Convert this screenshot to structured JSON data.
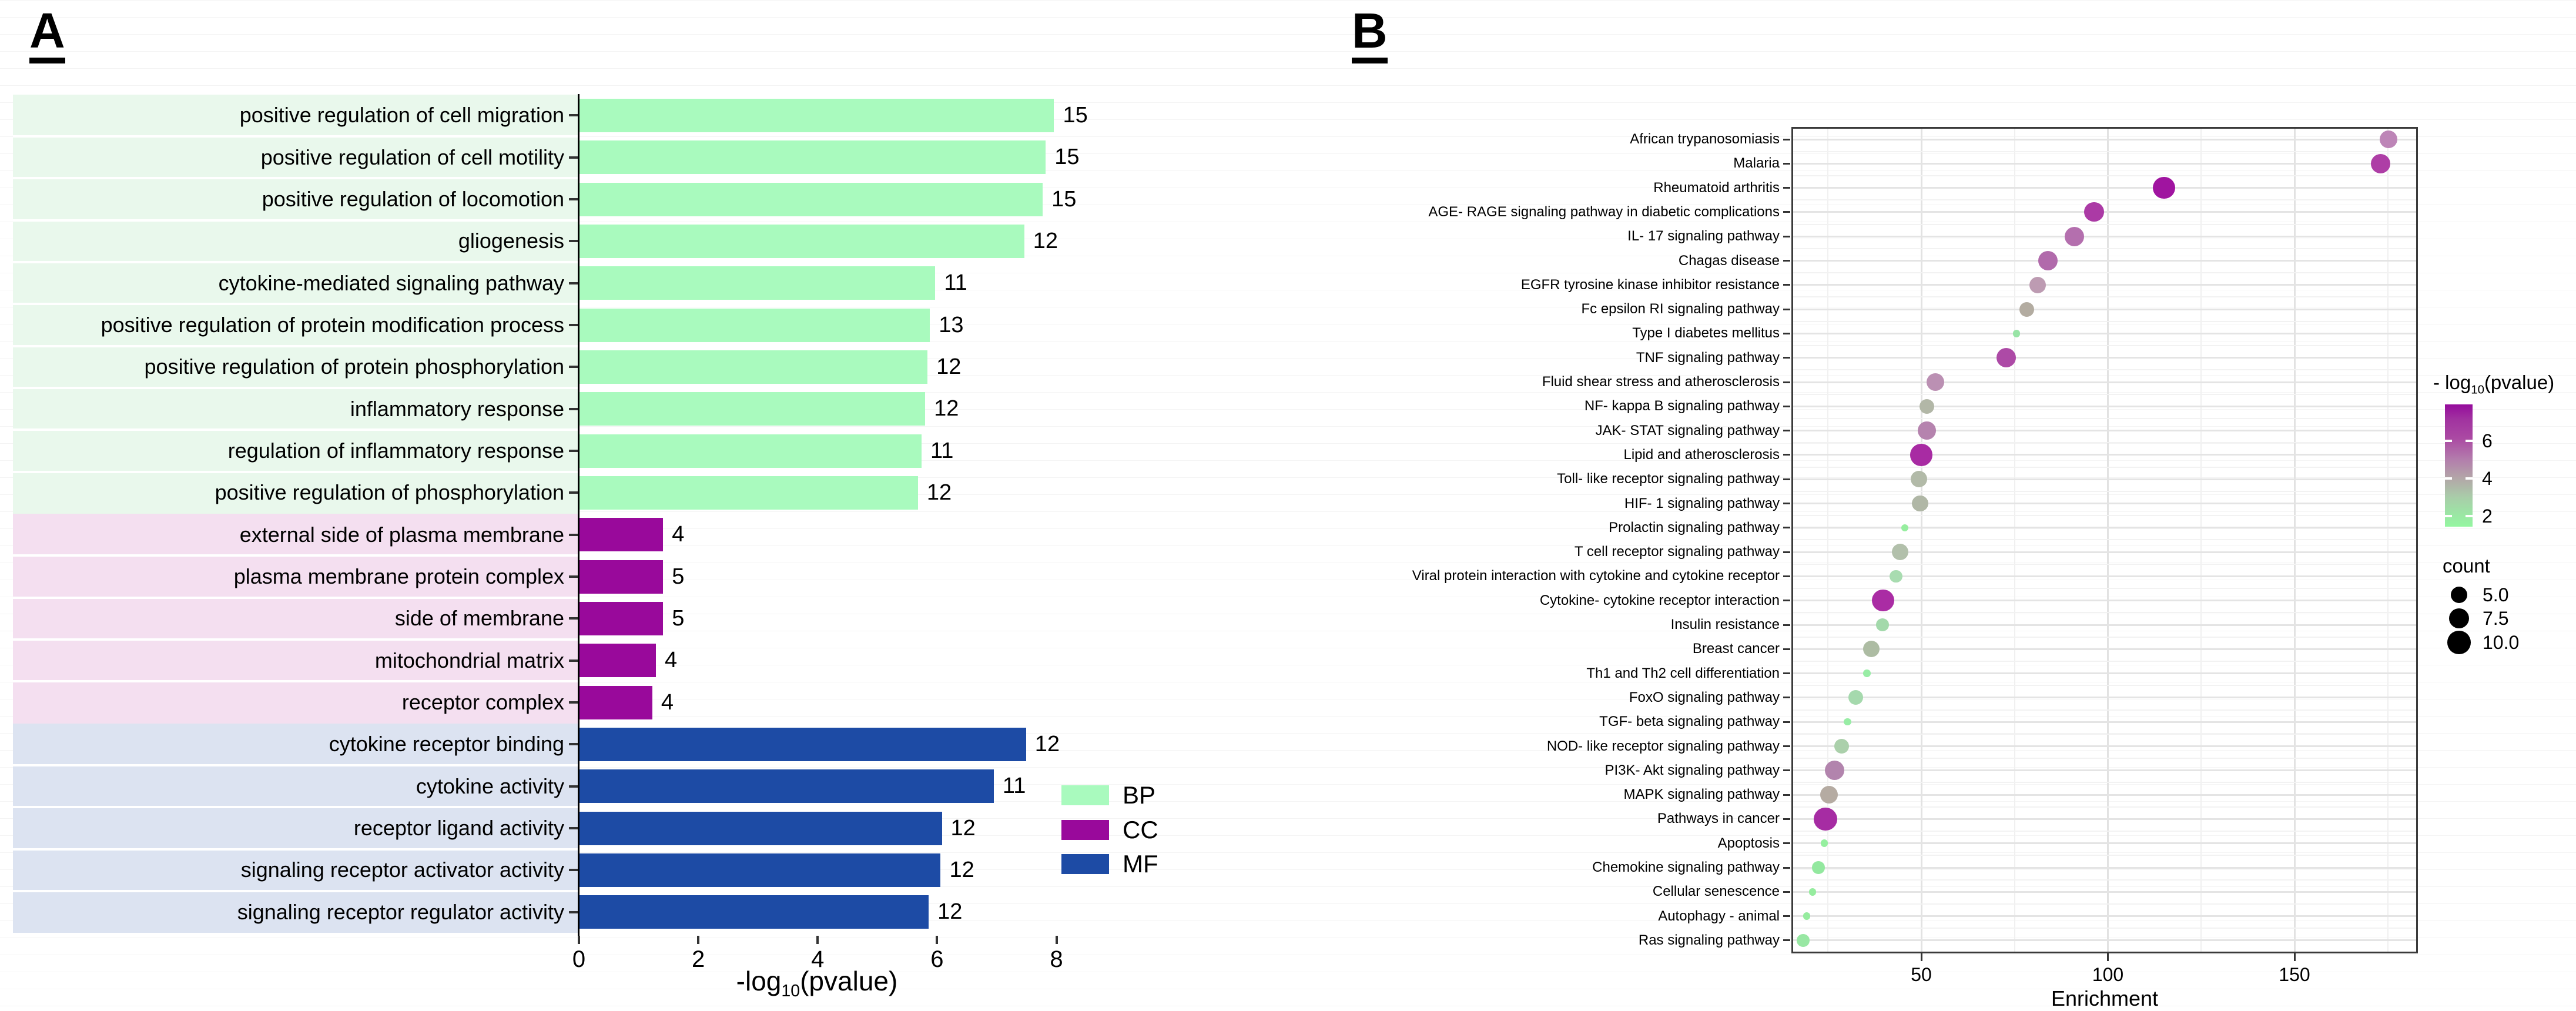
{
  "figure": {
    "panelA": {
      "label": "A"
    },
    "panelB": {
      "label": "B"
    }
  },
  "chart_data": [
    {
      "id": "A",
      "type": "bar",
      "orientation": "horizontal",
      "title": "",
      "xlabel": "-log10(pvalue)",
      "xlabel_parts": {
        "prefix": "-log",
        "sub": "10",
        "suffix": "(pvalue)"
      },
      "xlim": [
        0,
        8.6
      ],
      "xticks": [
        0,
        2,
        4,
        6,
        8
      ],
      "legend_position": "right",
      "groups": [
        {
          "name": "BP",
          "bar_color": "#a9fabe",
          "band_color": "#e9f8ec"
        },
        {
          "name": "CC",
          "bar_color": "#99099b",
          "band_color": "#f4dff0"
        },
        {
          "name": "MF",
          "bar_color": "#1d4ba5",
          "band_color": "#dce3f1"
        }
      ],
      "bars": [
        {
          "label": "positive regulation of cell migration",
          "group": "BP",
          "value": 7.95,
          "count": 15
        },
        {
          "label": "positive regulation of cell motility",
          "group": "BP",
          "value": 7.81,
          "count": 15
        },
        {
          "label": "positive regulation of locomotion",
          "group": "BP",
          "value": 7.76,
          "count": 15
        },
        {
          "label": "gliogenesis",
          "group": "BP",
          "value": 7.45,
          "count": 12
        },
        {
          "label": "cytokine-mediated signaling pathway",
          "group": "BP",
          "value": 5.96,
          "count": 11
        },
        {
          "label": "positive regulation of protein modification process",
          "group": "BP",
          "value": 5.87,
          "count": 13
        },
        {
          "label": "positive regulation of protein phosphorylation",
          "group": "BP",
          "value": 5.83,
          "count": 12
        },
        {
          "label": "inflammatory response",
          "group": "BP",
          "value": 5.79,
          "count": 12
        },
        {
          "label": "regulation of inflammatory response",
          "group": "BP",
          "value": 5.73,
          "count": 11
        },
        {
          "label": "positive regulation of phosphorylation",
          "group": "BP",
          "value": 5.67,
          "count": 12
        },
        {
          "label": "external side of plasma membrane",
          "group": "CC",
          "value": 1.4,
          "count": 4
        },
        {
          "label": "plasma membrane protein complex",
          "group": "CC",
          "value": 1.4,
          "count": 5
        },
        {
          "label": "side of membrane",
          "group": "CC",
          "value": 1.4,
          "count": 5
        },
        {
          "label": "mitochondrial matrix",
          "group": "CC",
          "value": 1.28,
          "count": 4
        },
        {
          "label": "receptor complex",
          "group": "CC",
          "value": 1.22,
          "count": 4
        },
        {
          "label": "cytokine receptor binding",
          "group": "MF",
          "value": 7.48,
          "count": 12
        },
        {
          "label": "cytokine activity",
          "group": "MF",
          "value": 6.94,
          "count": 11
        },
        {
          "label": "receptor ligand activity",
          "group": "MF",
          "value": 6.07,
          "count": 12
        },
        {
          "label": "signaling receptor activator activity",
          "group": "MF",
          "value": 6.05,
          "count": 12
        },
        {
          "label": "signaling receptor regulator activity",
          "group": "MF",
          "value": 5.85,
          "count": 12
        }
      ]
    },
    {
      "id": "B",
      "type": "scatter",
      "xlabel": "Enrichment",
      "xticks": [
        50,
        100,
        150
      ],
      "xlim": [
        15.2,
        183
      ],
      "grid": true,
      "color_legend": {
        "title": "- log10(pvalue)",
        "title_prefix": "- log",
        "title_sub": "10",
        "title_suffix": "(pvalue)",
        "ticks": [
          6,
          4,
          2
        ],
        "gradient_top_to_bottom": [
          "#950b9c",
          "#a132a0",
          "#ab4aa3",
          "#b37dac",
          "#b3a5a8",
          "#a9cda9",
          "#9ae8a4",
          "#94f6a0"
        ]
      },
      "size_legend": {
        "title": "count",
        "items": [
          "5.0",
          "7.5",
          "10.0"
        ]
      },
      "points": [
        {
          "label": "African trypanosomiasis",
          "enrichment": 175.2,
          "count": 6,
          "neg_log10_pvalue": 5.0,
          "color": "#bd85b7"
        },
        {
          "label": "Malaria",
          "enrichment": 173.0,
          "count": 7,
          "neg_log10_pvalue": 6.3,
          "color": "#ae3ea6"
        },
        {
          "label": "Rheumatoid arthritis",
          "enrichment": 115.0,
          "count": 9,
          "neg_log10_pvalue": 7.0,
          "color": "#a014a0"
        },
        {
          "label": "AGE- RAGE signaling pathway in diabetic complications",
          "enrichment": 96.3,
          "count": 7,
          "neg_log10_pvalue": 6.4,
          "color": "#ab3aa5"
        },
        {
          "label": "IL- 17 signaling pathway",
          "enrichment": 91.0,
          "count": 7,
          "neg_log10_pvalue": 5.3,
          "color": "#b46fae"
        },
        {
          "label": "Chagas disease",
          "enrichment": 84.0,
          "count": 7,
          "neg_log10_pvalue": 5.4,
          "color": "#b16aab"
        },
        {
          "label": "EGFR tyrosine kinase inhibitor resistance",
          "enrichment": 81.2,
          "count": 5,
          "neg_log10_pvalue": 4.3,
          "color": "#bd9bb2"
        },
        {
          "label": "Fc epsilon RI signaling pathway",
          "enrichment": 78.3,
          "count": 4,
          "neg_log10_pvalue": 3.8,
          "color": "#b3aca1"
        },
        {
          "label": "Type I diabetes mellitus",
          "enrichment": 75.5,
          "count": 1,
          "neg_log10_pvalue": 2.1,
          "color": "#98e4a6"
        },
        {
          "label": "TNF signaling pathway",
          "enrichment": 72.7,
          "count": 7,
          "neg_log10_pvalue": 6.0,
          "color": "#ad4aa6"
        },
        {
          "label": "Fluid shear stress and atherosclerosis",
          "enrichment": 53.8,
          "count": 6,
          "neg_log10_pvalue": 4.6,
          "color": "#bb90b3"
        },
        {
          "label": "NF- kappa B signaling pathway",
          "enrichment": 51.5,
          "count": 4,
          "neg_log10_pvalue": 3.6,
          "color": "#b2b7a7"
        },
        {
          "label": "JAK- STAT signaling pathway",
          "enrichment": 51.5,
          "count": 6,
          "neg_log10_pvalue": 4.9,
          "color": "#b583ae"
        },
        {
          "label": "Lipid and atherosclerosis",
          "enrichment": 50.0,
          "count": 9,
          "neg_log10_pvalue": 6.7,
          "color": "#a82ba3"
        },
        {
          "label": "Toll- like receptor signaling pathway",
          "enrichment": 49.4,
          "count": 5,
          "neg_log10_pvalue": 3.5,
          "color": "#b2baa8"
        },
        {
          "label": "HIF- 1 signaling pathway",
          "enrichment": 49.7,
          "count": 5,
          "neg_log10_pvalue": 3.6,
          "color": "#b0b7a6"
        },
        {
          "label": "Prolactin signaling pathway",
          "enrichment": 45.6,
          "count": 1,
          "neg_log10_pvalue": 1.8,
          "color": "#96ee9f"
        },
        {
          "label": "T cell receptor signaling pathway",
          "enrichment": 44.3,
          "count": 5,
          "neg_log10_pvalue": 3.3,
          "color": "#b2c0ab"
        },
        {
          "label": "Viral protein interaction with cytokine and cytokine receptor",
          "enrichment": 43.2,
          "count": 3,
          "neg_log10_pvalue": 2.5,
          "color": "#a8dcb0"
        },
        {
          "label": "Cytokine- cytokine receptor interaction",
          "enrichment": 39.8,
          "count": 9,
          "neg_log10_pvalue": 6.7,
          "color": "#aa2ca4"
        },
        {
          "label": "Insulin resistance",
          "enrichment": 39.6,
          "count": 3,
          "neg_log10_pvalue": 2.6,
          "color": "#a3d9ab"
        },
        {
          "label": "Breast cancer",
          "enrichment": 36.6,
          "count": 5,
          "neg_log10_pvalue": 3.4,
          "color": "#adbca3"
        },
        {
          "label": "Th1 and Th2 cell differentiation",
          "enrichment": 35.4,
          "count": 1,
          "neg_log10_pvalue": 2.0,
          "color": "#98eda5"
        },
        {
          "label": "FoxO signaling pathway",
          "enrichment": 32.5,
          "count": 4,
          "neg_log10_pvalue": 2.6,
          "color": "#a5d9ad"
        },
        {
          "label": "TGF- beta signaling pathway",
          "enrichment": 30.2,
          "count": 1,
          "neg_log10_pvalue": 2.0,
          "color": "#98eda5"
        },
        {
          "label": "NOD- like receptor signaling pathway",
          "enrichment": 28.6,
          "count": 4,
          "neg_log10_pvalue": 2.9,
          "color": "#abd0ab"
        },
        {
          "label": "PI3K- Akt signaling pathway",
          "enrichment": 26.8,
          "count": 7,
          "neg_log10_pvalue": 4.8,
          "color": "#b284ad"
        },
        {
          "label": "MAPK signaling pathway",
          "enrichment": 25.3,
          "count": 6,
          "neg_log10_pvalue": 3.9,
          "color": "#b5aba2"
        },
        {
          "label": "Pathways in cancer",
          "enrichment": 24.3,
          "count": 10,
          "neg_log10_pvalue": 6.8,
          "color": "#a62ca3"
        },
        {
          "label": "Apoptosis",
          "enrichment": 24.0,
          "count": 1,
          "neg_log10_pvalue": 1.9,
          "color": "#95ef9f"
        },
        {
          "label": "Chemokine signaling pathway",
          "enrichment": 22.4,
          "count": 3,
          "neg_log10_pvalue": 2.2,
          "color": "#93e89f"
        },
        {
          "label": "Cellular senescence",
          "enrichment": 20.9,
          "count": 1,
          "neg_log10_pvalue": 1.9,
          "color": "#96ec9f"
        },
        {
          "label": "Autophagy -  animal",
          "enrichment": 19.3,
          "count": 1,
          "neg_log10_pvalue": 1.9,
          "color": "#96ec9f"
        },
        {
          "label": "Ras signaling pathway",
          "enrichment": 18.3,
          "count": 3,
          "neg_log10_pvalue": 2.2,
          "color": "#98e7a3"
        }
      ]
    }
  ]
}
